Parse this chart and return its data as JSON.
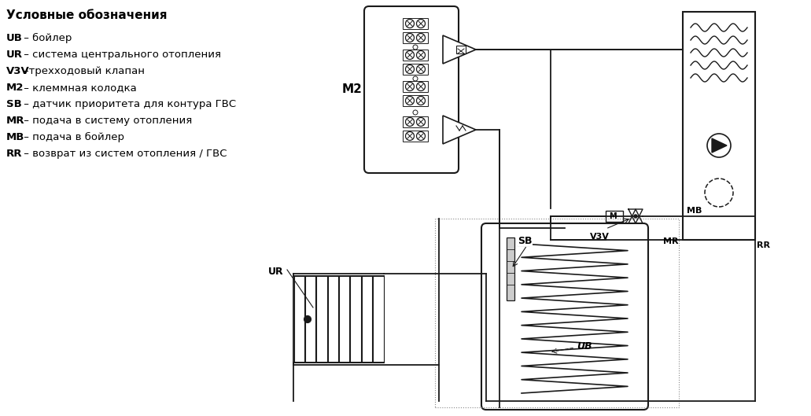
{
  "bg_color": "#ffffff",
  "legend_title": "Условные обозначения",
  "legend_items": [
    [
      "UB",
      " – бойлер"
    ],
    [
      "UR",
      " – система центрального отопления"
    ],
    [
      "V3V",
      "–трехходовый клапан"
    ],
    [
      "M2",
      " – клеммная колодка"
    ],
    [
      "SB",
      " – датчик приоритета для контура ГВС"
    ],
    [
      "MR",
      " – подача в систему отопления"
    ],
    [
      "MB",
      " – подача в бойлер"
    ],
    [
      "RR",
      " – возврат из систем отопления / ГВС"
    ]
  ],
  "lw": 1.3,
  "black": "#1a1a1a"
}
